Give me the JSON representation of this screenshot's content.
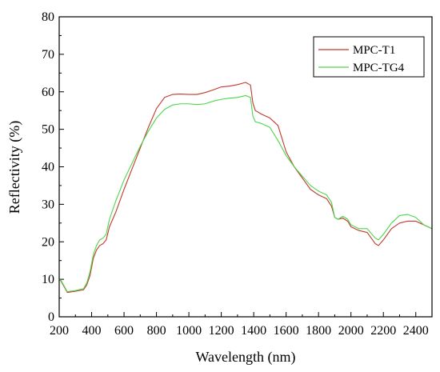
{
  "chart_data": {
    "type": "line",
    "title": "",
    "xlabel": "Wavelength (nm)",
    "ylabel": "Reflectivity (%)",
    "xlim": [
      200,
      2500
    ],
    "ylim": [
      0,
      80
    ],
    "x_ticks": [
      200,
      400,
      600,
      800,
      1000,
      1200,
      1400,
      1600,
      1800,
      2000,
      2200,
      2400
    ],
    "y_ticks": [
      0,
      10,
      20,
      30,
      40,
      50,
      60,
      70,
      80
    ],
    "grid": false,
    "legend_position": "top-right",
    "series": [
      {
        "name": "MPC-T1",
        "color": "#c0392b",
        "x": [
          200,
          210,
          250,
          300,
          350,
          370,
          390,
          410,
          430,
          450,
          470,
          490,
          510,
          550,
          600,
          650,
          700,
          750,
          800,
          850,
          900,
          950,
          1000,
          1050,
          1100,
          1150,
          1200,
          1250,
          1300,
          1350,
          1380,
          1395,
          1410,
          1450,
          1500,
          1550,
          1600,
          1650,
          1700,
          1750,
          1800,
          1850,
          1880,
          1900,
          1920,
          1950,
          1980,
          2000,
          2050,
          2100,
          2150,
          2170,
          2200,
          2250,
          2300,
          2350,
          2400,
          2450,
          2500
        ],
        "y": [
          10,
          9.6,
          6.5,
          6.8,
          7.2,
          8.5,
          11,
          15.5,
          17.8,
          19,
          19.5,
          20.5,
          24,
          28,
          34,
          39.5,
          45,
          50.5,
          55.5,
          58.5,
          59.3,
          59.4,
          59.3,
          59.3,
          59.8,
          60.5,
          61.3,
          61.5,
          61.9,
          62.5,
          61.8,
          57,
          55,
          54,
          53,
          51,
          44,
          40,
          37,
          34,
          32.5,
          31.5,
          29.5,
          26.5,
          26,
          26.3,
          25.5,
          24,
          23,
          22.5,
          19.5,
          19,
          20.5,
          23.5,
          25,
          25.5,
          25.5,
          24.5,
          23.5
        ]
      },
      {
        "name": "MPC-TG4",
        "color": "#4cd64c",
        "x": [
          200,
          210,
          250,
          300,
          350,
          370,
          390,
          410,
          430,
          450,
          470,
          490,
          510,
          550,
          600,
          650,
          700,
          750,
          800,
          850,
          900,
          950,
          1000,
          1050,
          1100,
          1150,
          1200,
          1250,
          1300,
          1350,
          1380,
          1395,
          1410,
          1450,
          1500,
          1550,
          1600,
          1650,
          1700,
          1750,
          1800,
          1850,
          1880,
          1900,
          1920,
          1950,
          1980,
          2000,
          2050,
          2100,
          2150,
          2170,
          2200,
          2250,
          2300,
          2350,
          2400,
          2450,
          2500
        ],
        "y": [
          10,
          9.8,
          6.7,
          7,
          7.5,
          9,
          12,
          16.5,
          19,
          20.5,
          21,
          22,
          26,
          31,
          36.5,
          41,
          45.5,
          49.5,
          53,
          55.3,
          56.5,
          56.8,
          56.8,
          56.6,
          56.8,
          57.5,
          58,
          58.3,
          58.5,
          59,
          58.5,
          53.5,
          52,
          51.5,
          50.5,
          47,
          43,
          40,
          37.5,
          35,
          33.5,
          32.5,
          30.5,
          26.5,
          26,
          26.8,
          26,
          24.5,
          23.5,
          23.5,
          21,
          20.5,
          22,
          25,
          27,
          27.3,
          26.5,
          24.5,
          23.5
        ]
      }
    ]
  }
}
